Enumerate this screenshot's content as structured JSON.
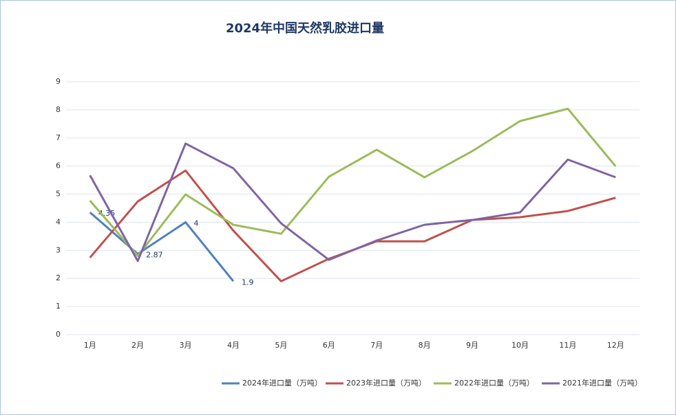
{
  "chart_data": {
    "type": "line",
    "title": "2024年中国天然乳胶进口量",
    "categories": [
      "1月",
      "2月",
      "3月",
      "4月",
      "5月",
      "6月",
      "7月",
      "8月",
      "9月",
      "10月",
      "11月",
      "12月"
    ],
    "series": [
      {
        "name": "2024年进口量（万吨）",
        "color": "#4f81bd",
        "values": [
          4.35,
          2.87,
          4,
          1.9,
          null,
          null,
          null,
          null,
          null,
          null,
          null,
          null
        ],
        "show_labels": true
      },
      {
        "name": "2023年进口量（万吨）",
        "color": "#c0504d",
        "values": [
          2.74,
          4.74,
          5.84,
          3.7,
          1.9,
          2.7,
          3.32,
          3.32,
          4.08,
          4.18,
          4.4,
          4.87
        ]
      },
      {
        "name": "2022年进口量（万吨）",
        "color": "#9bbb59",
        "values": [
          4.77,
          2.8,
          4.99,
          3.91,
          3.59,
          5.62,
          6.58,
          5.6,
          6.53,
          7.6,
          8.04,
          5.99
        ]
      },
      {
        "name": "2021年进口量（万吨）",
        "color": "#8064a2",
        "values": [
          5.67,
          2.62,
          6.8,
          5.92,
          3.96,
          2.66,
          3.35,
          3.91,
          4.08,
          4.35,
          6.23,
          5.6
        ]
      }
    ],
    "ylim": [
      0,
      9
    ],
    "yticks": [
      0,
      1,
      2,
      3,
      4,
      5,
      6,
      7,
      8,
      9
    ],
    "grid": true,
    "legend": "bottom"
  }
}
